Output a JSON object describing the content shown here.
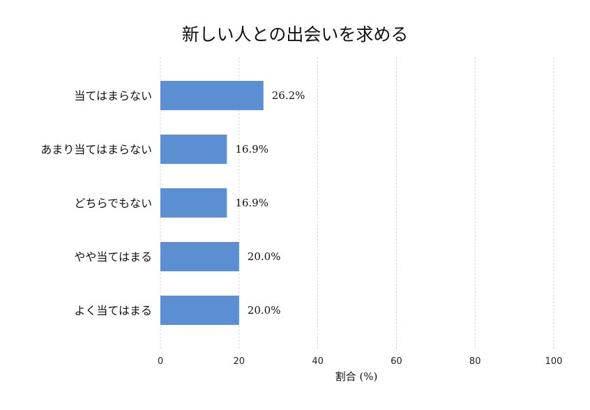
{
  "chart_data": {
    "type": "bar",
    "orientation": "horizontal",
    "title": "新しい人との出会いを求める",
    "xlabel": "割合 (%)",
    "ylabel": "",
    "categories": [
      "当てはまらない",
      "あまり当てはまらない",
      "どちらでもない",
      "やや当てはまる",
      "よく当てはまる"
    ],
    "values": [
      26.2,
      16.9,
      16.9,
      20.0,
      20.0
    ],
    "value_labels": [
      "26.2%",
      "16.9%",
      "16.9%",
      "20.0%",
      "20.0%"
    ],
    "xlim": [
      0,
      100
    ],
    "xticks": [
      0,
      20,
      40,
      60,
      80,
      100
    ],
    "x_grid": true,
    "bar_color": "#5b8fd1",
    "grid_color": "#cccccc"
  }
}
